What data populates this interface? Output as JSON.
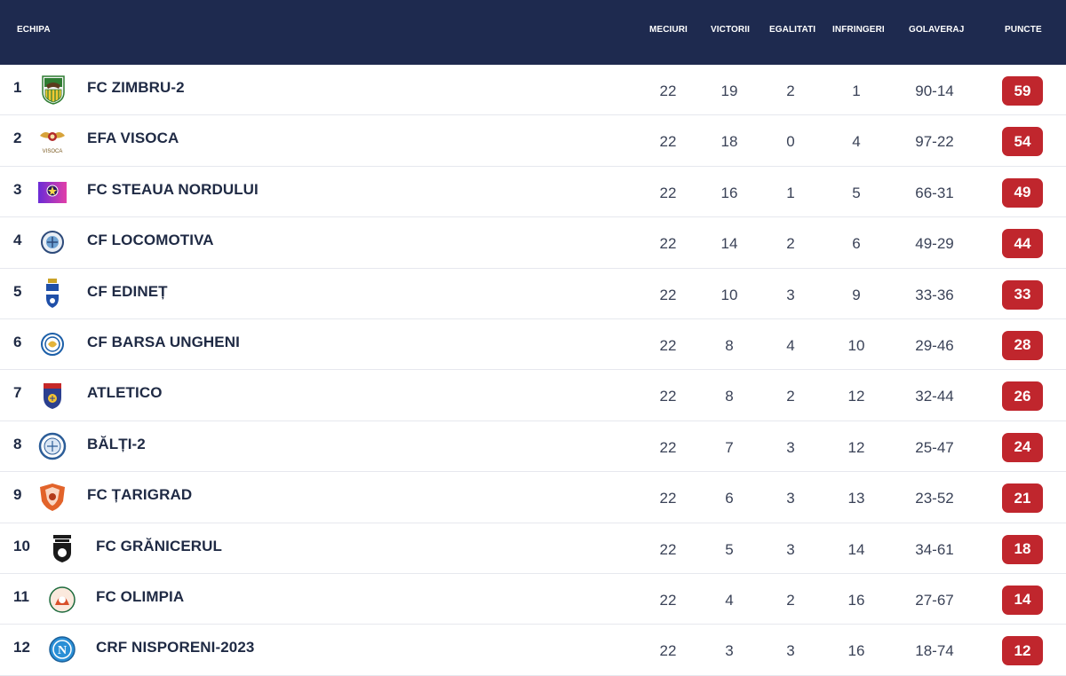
{
  "header": {
    "team": "ECHIPA",
    "played": "MECIURI",
    "wins": "VICTORII",
    "draws": "EGALITATI",
    "losses": "INFRINGERI",
    "goals": "GOLAVERAJ",
    "points": "PUNCTE"
  },
  "colors": {
    "header_bg": "#1e2a4f",
    "points_badge": "#c0262d"
  },
  "rows": [
    {
      "pos": "1",
      "team": "FC ZIMBRU-2",
      "logo": "zimbru-logo",
      "played": "22",
      "wins": "19",
      "draws": "2",
      "losses": "1",
      "goals": "90-14",
      "points": "59"
    },
    {
      "pos": "2",
      "team": "EFA VISOCA",
      "logo": "visoca-logo",
      "logo_text": "VISOCA",
      "played": "22",
      "wins": "18",
      "draws": "0",
      "losses": "4",
      "goals": "97-22",
      "points": "54"
    },
    {
      "pos": "3",
      "team": "FC STEAUA NORDULUI",
      "logo": "steaua-nordului-logo",
      "played": "22",
      "wins": "16",
      "draws": "1",
      "losses": "5",
      "goals": "66-31",
      "points": "49"
    },
    {
      "pos": "4",
      "team": "CF LOCOMOTIVA",
      "logo": "locomotiva-logo",
      "played": "22",
      "wins": "14",
      "draws": "2",
      "losses": "6",
      "goals": "49-29",
      "points": "44"
    },
    {
      "pos": "5",
      "team": "CF EDINEȚ",
      "logo": "edinet-logo",
      "played": "22",
      "wins": "10",
      "draws": "3",
      "losses": "9",
      "goals": "33-36",
      "points": "33"
    },
    {
      "pos": "6",
      "team": "CF BARSA UNGHENI",
      "logo": "barsa-ungheni-logo",
      "played": "22",
      "wins": "8",
      "draws": "4",
      "losses": "10",
      "goals": "29-46",
      "points": "28"
    },
    {
      "pos": "7",
      "team": "ATLETICO",
      "logo": "atletico-logo",
      "played": "22",
      "wins": "8",
      "draws": "2",
      "losses": "12",
      "goals": "32-44",
      "points": "26"
    },
    {
      "pos": "8",
      "team": "BĂLȚI-2",
      "logo": "balti-logo",
      "played": "22",
      "wins": "7",
      "draws": "3",
      "losses": "12",
      "goals": "25-47",
      "points": "24"
    },
    {
      "pos": "9",
      "team": "FC ȚARIGRAD",
      "logo": "tarigrad-logo",
      "played": "22",
      "wins": "6",
      "draws": "3",
      "losses": "13",
      "goals": "23-52",
      "points": "21"
    },
    {
      "pos": "10",
      "team": "FC GRĂNICERUL",
      "logo": "granicerul-logo",
      "played": "22",
      "wins": "5",
      "draws": "3",
      "losses": "14",
      "goals": "34-61",
      "points": "18"
    },
    {
      "pos": "11",
      "team": "FC OLIMPIA",
      "logo": "olimpia-logo",
      "played": "22",
      "wins": "4",
      "draws": "2",
      "losses": "16",
      "goals": "27-67",
      "points": "14"
    },
    {
      "pos": "12",
      "team": "CRF NISPORENI-2023",
      "logo": "nisporeni-logo",
      "played": "22",
      "wins": "3",
      "draws": "3",
      "losses": "16",
      "goals": "18-74",
      "points": "12"
    }
  ]
}
